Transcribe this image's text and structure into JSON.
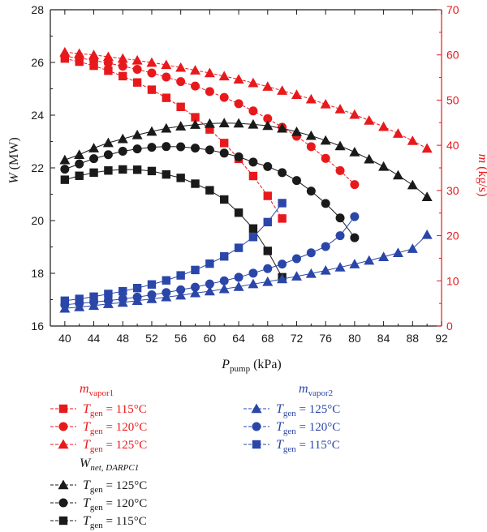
{
  "chart_data": {
    "type": "line",
    "xlabel": {
      "main": "P",
      "sub": "pump",
      "unit": " (kPa)"
    },
    "ylabel_left": {
      "main": "W",
      "unit": " (MW)"
    },
    "ylabel_right": {
      "main": "m",
      "unit": " (kg/s)"
    },
    "xlim": [
      38,
      92
    ],
    "ylim_left": [
      16,
      28
    ],
    "ylim_right": [
      0,
      70
    ],
    "xticks": [
      40,
      44,
      48,
      52,
      56,
      60,
      64,
      68,
      72,
      76,
      80,
      84,
      88,
      92
    ],
    "yticks_left": [
      16,
      18,
      20,
      22,
      24,
      26,
      28
    ],
    "yticks_right": [
      0,
      10,
      20,
      30,
      40,
      50,
      60,
      70
    ],
    "colors": {
      "red": "#e8191c",
      "black": "#1a1a1a",
      "blue": "#2a46a8"
    },
    "series": [
      {
        "group": "mvapor1",
        "axis": "right",
        "color": "red",
        "marker": "square",
        "x": [
          40,
          42,
          44,
          46,
          48,
          50,
          52,
          54,
          56,
          58,
          60,
          62,
          64,
          66,
          68,
          70
        ],
        "y": [
          59.2,
          58.5,
          57.6,
          56.5,
          55.3,
          53.9,
          52.3,
          50.5,
          48.5,
          46.2,
          43.5,
          40.5,
          37.0,
          33.2,
          28.8,
          23.8
        ]
      },
      {
        "group": "mvapor1",
        "axis": "right",
        "color": "red",
        "marker": "circle",
        "x": [
          40,
          42,
          44,
          46,
          48,
          50,
          52,
          54,
          56,
          58,
          60,
          62,
          64,
          66,
          68,
          70,
          72,
          74,
          76,
          78,
          80
        ],
        "y": [
          59.7,
          59.3,
          58.8,
          58.2,
          57.5,
          56.8,
          56.0,
          55.1,
          54.1,
          53.1,
          51.9,
          50.6,
          49.2,
          47.6,
          45.9,
          44.0,
          42.0,
          39.7,
          37.1,
          34.4,
          31.3
        ]
      },
      {
        "group": "mvapor1",
        "axis": "right",
        "color": "red",
        "marker": "triangle",
        "x": [
          40,
          42,
          44,
          46,
          48,
          50,
          52,
          54,
          56,
          58,
          60,
          62,
          64,
          66,
          68,
          70,
          72,
          74,
          76,
          78,
          80,
          82,
          84,
          86,
          88,
          90
        ],
        "y": [
          60.6,
          60.3,
          60.0,
          59.6,
          59.2,
          58.8,
          58.3,
          57.8,
          57.2,
          56.6,
          56.0,
          55.3,
          54.6,
          53.8,
          53.0,
          52.1,
          51.2,
          50.2,
          49.1,
          48.0,
          46.8,
          45.5,
          44.1,
          42.6,
          41.0,
          39.3
        ]
      },
      {
        "group": "wnet",
        "axis": "left",
        "color": "black",
        "marker": "triangle",
        "x": [
          40,
          42,
          44,
          46,
          48,
          50,
          52,
          54,
          56,
          58,
          60,
          62,
          64,
          66,
          68,
          70,
          72,
          74,
          76,
          78,
          80,
          82,
          84,
          86,
          88,
          90
        ],
        "y": [
          22.3,
          22.5,
          22.75,
          22.95,
          23.1,
          23.25,
          23.38,
          23.5,
          23.58,
          23.64,
          23.68,
          23.7,
          23.69,
          23.65,
          23.6,
          23.5,
          23.37,
          23.22,
          23.04,
          22.83,
          22.6,
          22.33,
          22.05,
          21.72,
          21.35,
          20.9
        ]
      },
      {
        "group": "wnet",
        "axis": "left",
        "color": "black",
        "marker": "circle",
        "x": [
          40,
          42,
          44,
          46,
          48,
          50,
          52,
          54,
          56,
          58,
          60,
          62,
          64,
          66,
          68,
          70,
          72,
          74,
          76,
          78,
          80
        ],
        "y": [
          21.95,
          22.15,
          22.35,
          22.5,
          22.63,
          22.72,
          22.78,
          22.81,
          22.8,
          22.75,
          22.68,
          22.56,
          22.42,
          22.22,
          22.05,
          21.82,
          21.52,
          21.12,
          20.65,
          20.1,
          19.35
        ]
      },
      {
        "group": "wnet",
        "axis": "left",
        "color": "black",
        "marker": "square",
        "x": [
          40,
          42,
          44,
          46,
          48,
          50,
          52,
          54,
          56,
          58,
          60,
          62,
          64,
          66,
          68,
          70
        ],
        "y": [
          21.55,
          21.7,
          21.82,
          21.9,
          21.94,
          21.93,
          21.88,
          21.75,
          21.62,
          21.4,
          21.15,
          20.8,
          20.3,
          19.7,
          18.85,
          17.85
        ]
      },
      {
        "group": "mvapor2",
        "axis": "right",
        "color": "blue",
        "marker": "triangle",
        "x": [
          40,
          42,
          44,
          46,
          48,
          50,
          52,
          54,
          56,
          58,
          60,
          62,
          64,
          66,
          68,
          70,
          72,
          74,
          76,
          78,
          80,
          82,
          84,
          86,
          88,
          90
        ],
        "y": [
          3.9,
          4.2,
          4.5,
          4.9,
          5.2,
          5.6,
          6.0,
          6.4,
          6.8,
          7.3,
          7.7,
          8.2,
          8.7,
          9.3,
          9.8,
          10.4,
          11.0,
          11.6,
          12.3,
          13.0,
          13.7,
          14.5,
          15.3,
          16.2,
          17.1,
          20.2
        ]
      },
      {
        "group": "mvapor2",
        "axis": "right",
        "color": "blue",
        "marker": "circle",
        "x": [
          40,
          42,
          44,
          46,
          48,
          50,
          52,
          54,
          56,
          58,
          60,
          62,
          64,
          66,
          68,
          70,
          72,
          74,
          76,
          78,
          80
        ],
        "y": [
          4.7,
          5.0,
          5.3,
          5.6,
          6.0,
          6.4,
          6.9,
          7.4,
          8.0,
          8.6,
          9.3,
          10.0,
          10.8,
          11.7,
          12.7,
          13.7,
          14.9,
          16.2,
          17.6,
          20.0,
          24.2
        ]
      },
      {
        "group": "mvapor2",
        "axis": "right",
        "color": "blue",
        "marker": "square",
        "x": [
          40,
          42,
          44,
          46,
          48,
          50,
          52,
          54,
          56,
          58,
          60,
          62,
          64,
          66,
          68,
          70
        ],
        "y": [
          5.6,
          6.0,
          6.5,
          7.1,
          7.7,
          8.4,
          9.2,
          10.1,
          11.2,
          12.4,
          13.8,
          15.4,
          17.3,
          19.7,
          23.0,
          27.2
        ]
      }
    ],
    "legend": {
      "mvapor1": {
        "main": "m",
        "sub": "vapor1",
        "entries": [
          "115°C",
          "120°C",
          "125°C"
        ]
      },
      "mvapor2": {
        "main": "m",
        "sub": "vapor2",
        "entries": [
          "125°C",
          "120°C",
          "115°C"
        ]
      },
      "wnet": {
        "main": "W",
        "sub": "net, DARPC1",
        "entries": [
          "125°C",
          "120°C",
          "115°C"
        ]
      },
      "entry_prefix": {
        "main": "T",
        "sub": "gen",
        "eq": " = "
      }
    }
  }
}
